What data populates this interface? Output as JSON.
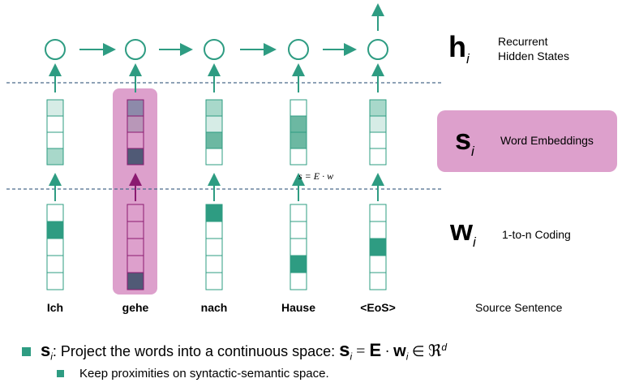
{
  "layers": {
    "hidden": {
      "symbol": "h",
      "subscript": "i",
      "label_line1": "Recurrent",
      "label_line2": "Hidden States"
    },
    "embedding": {
      "symbol": "s",
      "subscript": "i",
      "label": "Word Embeddings",
      "equation": "s = E · w"
    },
    "coding": {
      "symbol": "w",
      "subscript": "i",
      "label": "1-to-n Coding"
    },
    "source": {
      "label": "Source Sentence"
    }
  },
  "words": [
    "Ich",
    "gehe",
    "nach",
    "Hause",
    "<EoS>"
  ],
  "bullets": {
    "main_sym": "s",
    "main_sub": "i",
    "main_text": ": Project the words into a continuous space: ",
    "formula_s": "s",
    "formula_sub": "i",
    "formula_eq": "=",
    "formula_E": "E",
    "formula_dot": "·",
    "formula_w": "w",
    "formula_wsub": "i",
    "formula_in": "∈",
    "formula_R": "ℜ",
    "formula_d": "d",
    "sub_text": "Keep proximities on syntactic-semantic space."
  },
  "colors": {
    "accent": "#2e9c82",
    "highlight": "#dda0cc",
    "dark": "#505a76",
    "light1": "#a8d8ca",
    "light2": "#d6ece6",
    "mid": "#6cb8a2"
  }
}
